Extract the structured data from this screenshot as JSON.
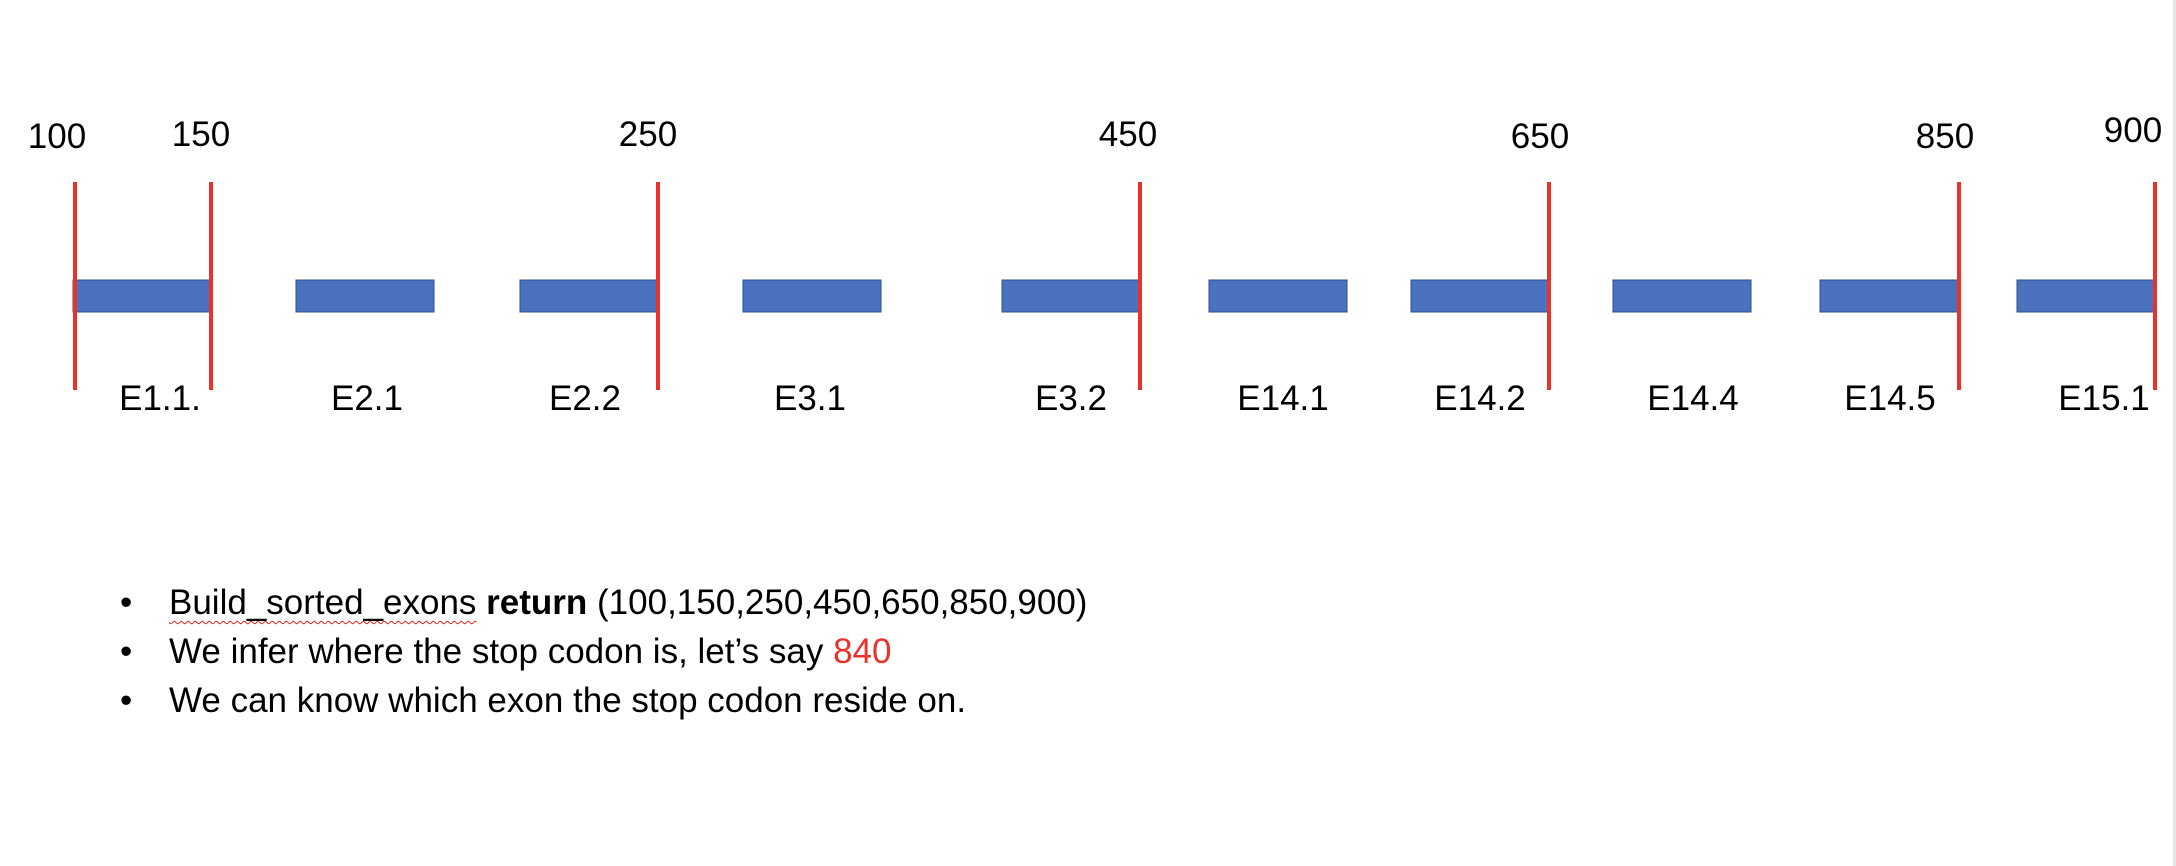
{
  "diagram": {
    "axis_min": 100,
    "axis_max": 900,
    "boundary_color": "#e8322a",
    "exon_fill": "#4a72be",
    "exon_stroke": "#2f4f8f",
    "boundaries": [
      {
        "label": "100",
        "value": 100
      },
      {
        "label": "150",
        "value": 150
      },
      {
        "label": "250",
        "value": 250
      },
      {
        "label": "450",
        "value": 450
      },
      {
        "label": "650",
        "value": 650
      },
      {
        "label": "850",
        "value": 850
      },
      {
        "label": "900",
        "value": 900
      }
    ],
    "exons": [
      {
        "label": "E1.1."
      },
      {
        "label": "E2.1"
      },
      {
        "label": "E2.2"
      },
      {
        "label": "E3.1"
      },
      {
        "label": "E3.2"
      },
      {
        "label": "E14.1"
      },
      {
        "label": "E14.2"
      },
      {
        "label": "E14.4"
      },
      {
        "label": "E14.5"
      },
      {
        "label": "E15.1"
      }
    ]
  },
  "bullets": {
    "line1": {
      "func_name": "Build_sorted_exons",
      "keyword": "return",
      "values": "(100,150,250,450,650,850,900)"
    },
    "line2": {
      "text": "We infer where the stop codon is, let’s say",
      "highlight": "840",
      "highlight_color": "#e8322a"
    },
    "line3": {
      "text": "We can know which exon the stop codon reside on."
    }
  }
}
